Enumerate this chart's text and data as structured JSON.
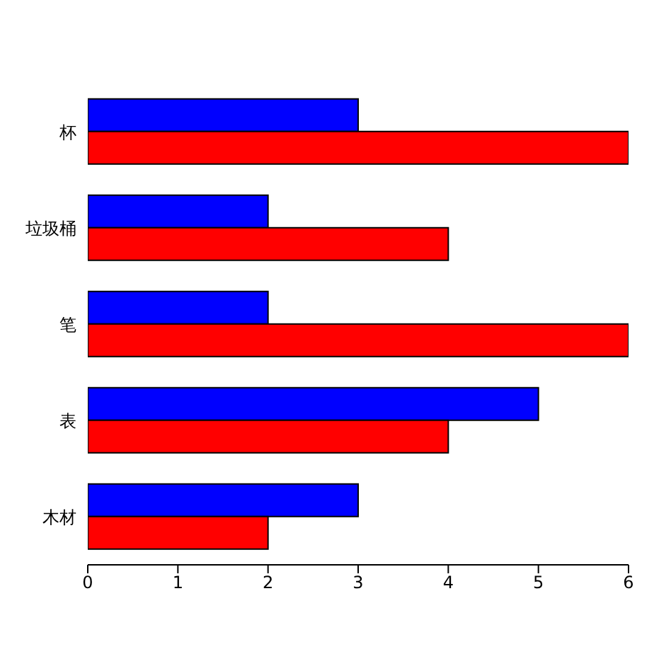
{
  "chart_data": {
    "type": "bar",
    "orientation": "horizontal",
    "categories": [
      "杯",
      "垃圾桶",
      "笔",
      "表",
      "木材"
    ],
    "series": [
      {
        "color": "#0000ff",
        "values": [
          3,
          2,
          2,
          5,
          3
        ]
      },
      {
        "color": "#ff0000",
        "values": [
          6,
          4,
          6,
          4,
          2
        ]
      }
    ],
    "xlim": [
      0,
      6
    ],
    "xticks": [
      0,
      1,
      2,
      3,
      4,
      5,
      6
    ]
  }
}
